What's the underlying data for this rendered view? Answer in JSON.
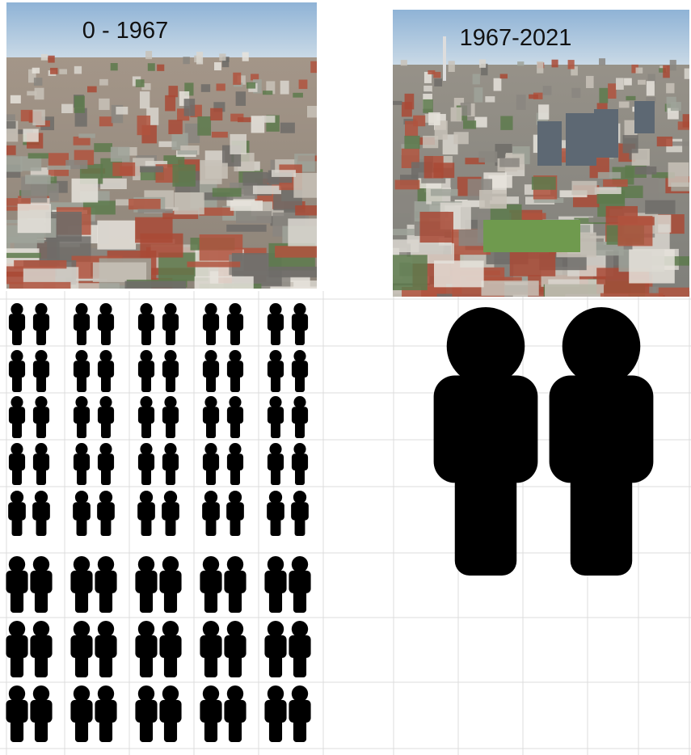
{
  "panels": [
    {
      "label": "0 - 1967"
    },
    {
      "label": "1967-2021"
    }
  ]
}
